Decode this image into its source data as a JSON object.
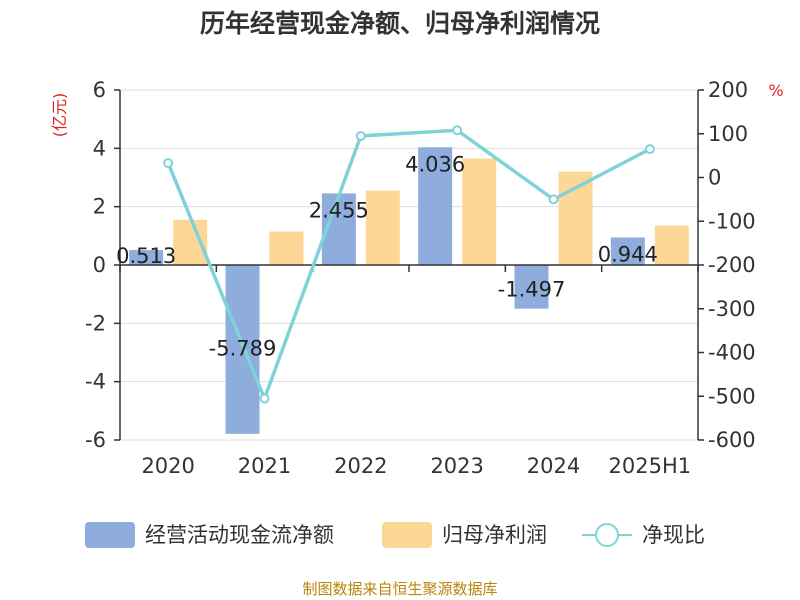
{
  "chart_data": {
    "type": "bar",
    "title": "历年经营现金净额、归母净利润情况",
    "categories": [
      "2020",
      "2021",
      "2022",
      "2023",
      "2024",
      "2025H1"
    ],
    "series": [
      {
        "name": "经营活动现金流净额",
        "kind": "bar",
        "axis": "left",
        "color": "#8eaddc",
        "values": [
          0.513,
          -5.789,
          2.455,
          4.036,
          -1.497,
          0.944
        ]
      },
      {
        "name": "归母净利润",
        "kind": "bar",
        "axis": "left",
        "color": "#fdd796",
        "values": [
          1.55,
          1.15,
          2.55,
          3.65,
          3.2,
          1.35
        ]
      },
      {
        "name": "净现比",
        "kind": "line",
        "axis": "right",
        "color": "#7fd3d8",
        "values": [
          33,
          -505,
          95,
          108,
          -50,
          65
        ]
      }
    ],
    "data_labels": [
      "0.513",
      "-5.789",
      "2.455",
      "4.036",
      "-1.497",
      "0.944"
    ],
    "y_left": {
      "label": "(亿元)",
      "min": -6,
      "max": 6,
      "step": 2
    },
    "y_right": {
      "label": "%",
      "min": -600,
      "max": 200,
      "step": 100
    },
    "grid": true,
    "legend": "bottom",
    "source": "制图数据来自恒生聚源数据库"
  }
}
